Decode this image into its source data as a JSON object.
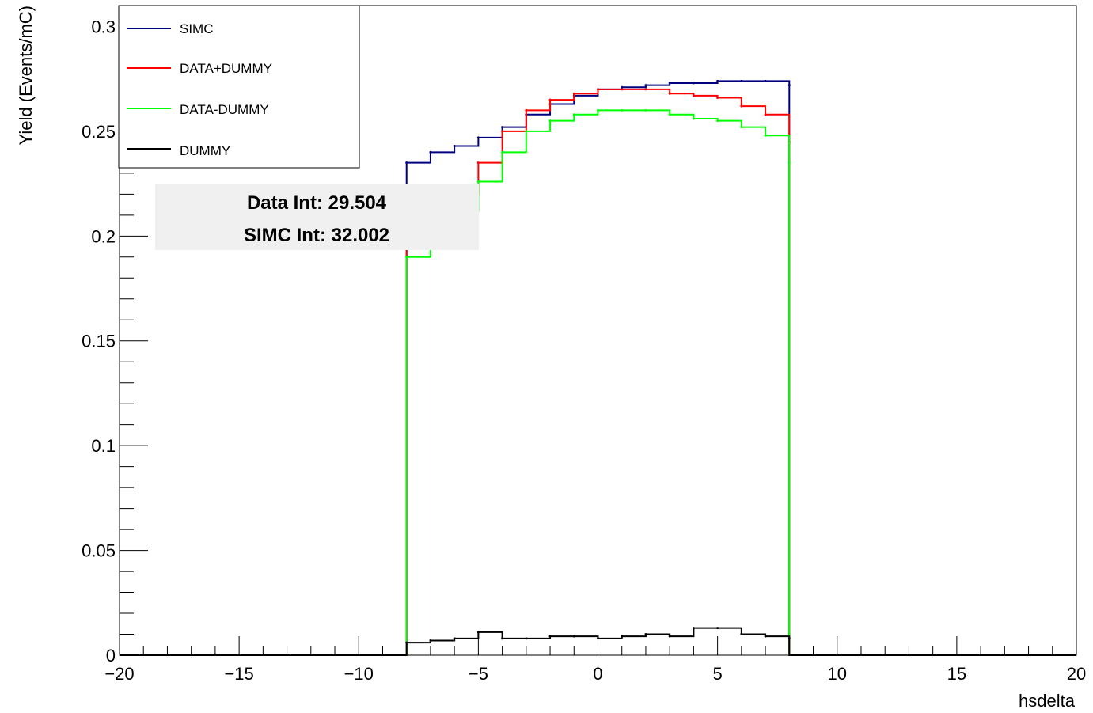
{
  "chart_data": {
    "type": "histogram",
    "xlabel": "hsdelta",
    "ylabel": "Yield (Events/mC)",
    "xlim": [
      -20,
      20
    ],
    "ylim": [
      0,
      0.31
    ],
    "grid": false,
    "x_ticks": [
      -20,
      -15,
      -10,
      -5,
      0,
      5,
      10,
      15,
      20
    ],
    "x_tick_labels": [
      "−20",
      "−15",
      "−10",
      "−5",
      "0",
      "5",
      "10",
      "15",
      "20"
    ],
    "y_ticks": [
      0,
      0.05,
      0.1,
      0.15,
      0.2,
      0.25,
      0.3
    ],
    "y_tick_labels": [
      "0",
      "0.05",
      "0.1",
      "0.15",
      "0.2",
      "0.25",
      "0.3"
    ],
    "legend_position": "top-left",
    "series": [
      {
        "name": "SIMC",
        "color": "#00007f",
        "x": [
          -8.0,
          -7.0,
          -6.0,
          -5.0,
          -4.0,
          -3.0,
          -2.0,
          -1.0,
          0.0,
          1.0,
          2.0,
          3.0,
          4.0,
          5.0,
          6.0,
          7.0,
          8.0
        ],
        "y": [
          0.235,
          0.24,
          0.243,
          0.247,
          0.252,
          0.258,
          0.263,
          0.267,
          0.27,
          0.271,
          0.272,
          0.273,
          0.273,
          0.274,
          0.274,
          0.274,
          0.272
        ]
      },
      {
        "name": "DATA+DUMMY",
        "color": "#ff0000",
        "x": [
          -8.0,
          -7.0,
          -6.0,
          -5.0,
          -4.0,
          -3.0,
          -2.0,
          -1.0,
          0.0,
          1.0,
          2.0,
          3.0,
          4.0,
          5.0,
          6.0,
          7.0,
          8.0
        ],
        "y": [
          0.196,
          0.205,
          0.22,
          0.235,
          0.25,
          0.26,
          0.265,
          0.268,
          0.27,
          0.27,
          0.27,
          0.268,
          0.267,
          0.266,
          0.262,
          0.258,
          0.245
        ]
      },
      {
        "name": "DATA-DUMMY",
        "color": "#00ff00",
        "x": [
          -8.0,
          -7.0,
          -6.0,
          -5.0,
          -4.0,
          -3.0,
          -2.0,
          -1.0,
          0.0,
          1.0,
          2.0,
          3.0,
          4.0,
          5.0,
          6.0,
          7.0,
          8.0
        ],
        "y": [
          0.19,
          0.197,
          0.212,
          0.226,
          0.24,
          0.25,
          0.255,
          0.258,
          0.26,
          0.26,
          0.26,
          0.258,
          0.256,
          0.255,
          0.252,
          0.248,
          0.235
        ]
      },
      {
        "name": "DUMMY",
        "color": "#000000",
        "x": [
          -8.0,
          -7.0,
          -6.0,
          -5.0,
          -4.0,
          -3.0,
          -2.0,
          -1.0,
          0.0,
          1.0,
          2.0,
          3.0,
          4.0,
          5.0,
          6.0,
          7.0,
          8.0
        ],
        "y": [
          0.006,
          0.007,
          0.008,
          0.011,
          0.008,
          0.008,
          0.009,
          0.009,
          0.008,
          0.009,
          0.01,
          0.009,
          0.013,
          0.013,
          0.01,
          0.009,
          0.008
        ]
      }
    ],
    "annotations": [
      "Data Int: 29.504",
      "SIMC Int: 32.002"
    ]
  }
}
